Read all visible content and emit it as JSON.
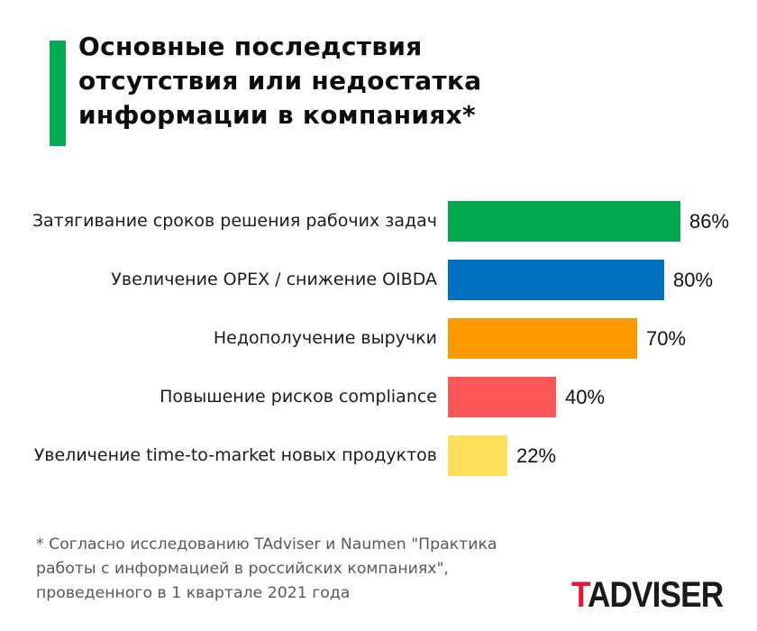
{
  "title": "Основные последствия\nотсутствия или недостатка\nинформации в компаниях*",
  "footnote": "* Согласно исследованию TAdviser и Naumen \"Практика\nработы с информацией в российских компаниях\",\nпроведенного в 1 квартале 2021 года",
  "logo": {
    "t": "T",
    "rest": "ADVISER"
  },
  "colors": {
    "accent_green": "#00ab50",
    "logo_red": "#e2173d",
    "footnote_gray": "#58595b",
    "background": "#ffffff"
  },
  "chart_data": {
    "type": "bar",
    "orientation": "horizontal",
    "title": "Основные последствия отсутствия или недостатка информации в компаниях*",
    "categories": [
      "Затягивание сроков решения рабочих задач",
      "Увеличение OPEX / снижение OIBDA",
      "Недополучение выручки",
      "Повышение рисков compliance",
      "Увеличение time-to-market новых продуктов"
    ],
    "values": [
      86,
      80,
      70,
      40,
      22
    ],
    "value_labels": [
      "86%",
      "80%",
      "70%",
      "40%",
      "22%"
    ],
    "unit": "%",
    "xlim": [
      0,
      100
    ],
    "bar_colors": [
      "#00a850",
      "#0070c0",
      "#ff9900",
      "#ff5757",
      "#ffde59"
    ],
    "grid": false,
    "legend": false,
    "value_label_position": "right-of-bar"
  }
}
